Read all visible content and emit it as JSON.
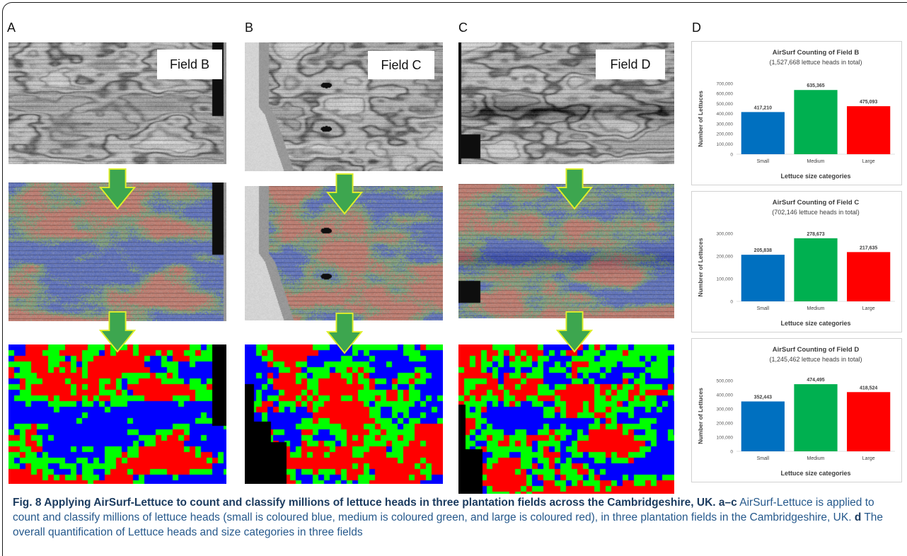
{
  "figure": {
    "panel_labels": [
      "A",
      "B",
      "C",
      "D"
    ],
    "field_labels": [
      "Field B",
      "Field C",
      "Field D"
    ]
  },
  "size_class_colors": {
    "small": "#0000ff",
    "medium": "#00ff00",
    "large": "#ff0000"
  },
  "chart_data": [
    {
      "type": "bar",
      "title": "AirSurf Counting of Field B",
      "subtitle": "(1,527,668 lettuce heads in total)",
      "xlabel": "Lettuce size categories",
      "ylabel": "Number of Lettuces",
      "categories": [
        "Small",
        "Medium",
        "Large"
      ],
      "values": [
        417210,
        635365,
        475093
      ],
      "value_labels": [
        "417,210",
        "635,365",
        "475,093"
      ],
      "colors": [
        "#0070c0",
        "#00b050",
        "#ff0000"
      ],
      "ylim": [
        0,
        700000
      ],
      "yticks": [
        "0",
        "100,000",
        "200,000",
        "300,000",
        "400,000",
        "500,000",
        "600,000",
        "700,000"
      ],
      "grid": false
    },
    {
      "type": "bar",
      "title": "AirSurf Counting of Field C",
      "subtitle": "(702,146 lettuce heads in total)",
      "xlabel": "Lettuce size categories",
      "ylabel": "Numbrer of Lettuces",
      "categories": [
        "Small",
        "Medium",
        "Large"
      ],
      "values": [
        205838,
        278673,
        217635
      ],
      "value_labels": [
        "205,838",
        "278,673",
        "217,635"
      ],
      "colors": [
        "#0070c0",
        "#00b050",
        "#ff0000"
      ],
      "ylim": [
        0,
        300000
      ],
      "yticks": [
        "0",
        "100,000",
        "200,000",
        "300,000"
      ],
      "grid": false
    },
    {
      "type": "bar",
      "title": "AirSurf Counting of Field D",
      "subtitle": "(1,245,462 lettuce heads in total)",
      "xlabel": "Lettuce size categories",
      "ylabel": "Number of Lettuces",
      "categories": [
        "Small",
        "Medium",
        "Large"
      ],
      "values": [
        352443,
        474495,
        418524
      ],
      "value_labels": [
        "352,443",
        "474,495",
        "418,524"
      ],
      "colors": [
        "#0070c0",
        "#00b050",
        "#ff0000"
      ],
      "ylim": [
        0,
        500000
      ],
      "yticks": [
        "0",
        "100,000",
        "200,000",
        "300,000",
        "400,000",
        "500,000"
      ],
      "grid": false
    }
  ],
  "caption": {
    "title": "Fig. 8 Applying AirSurf-Lettuce to count and classify millions of lettuce heads in three plantation fields across the Cambridgeshire, UK.",
    "label_ac": "a–c",
    "text_ac": "AirSurf-Lettuce is applied to count and classify millions of lettuce heads (small is coloured blue, medium is coloured green, and large is coloured red), in three plantation fields in the Cambridgeshire, UK.",
    "label_d": "d",
    "text_d": "The overall quantification of Lettuce heads and size categories in three fields"
  }
}
